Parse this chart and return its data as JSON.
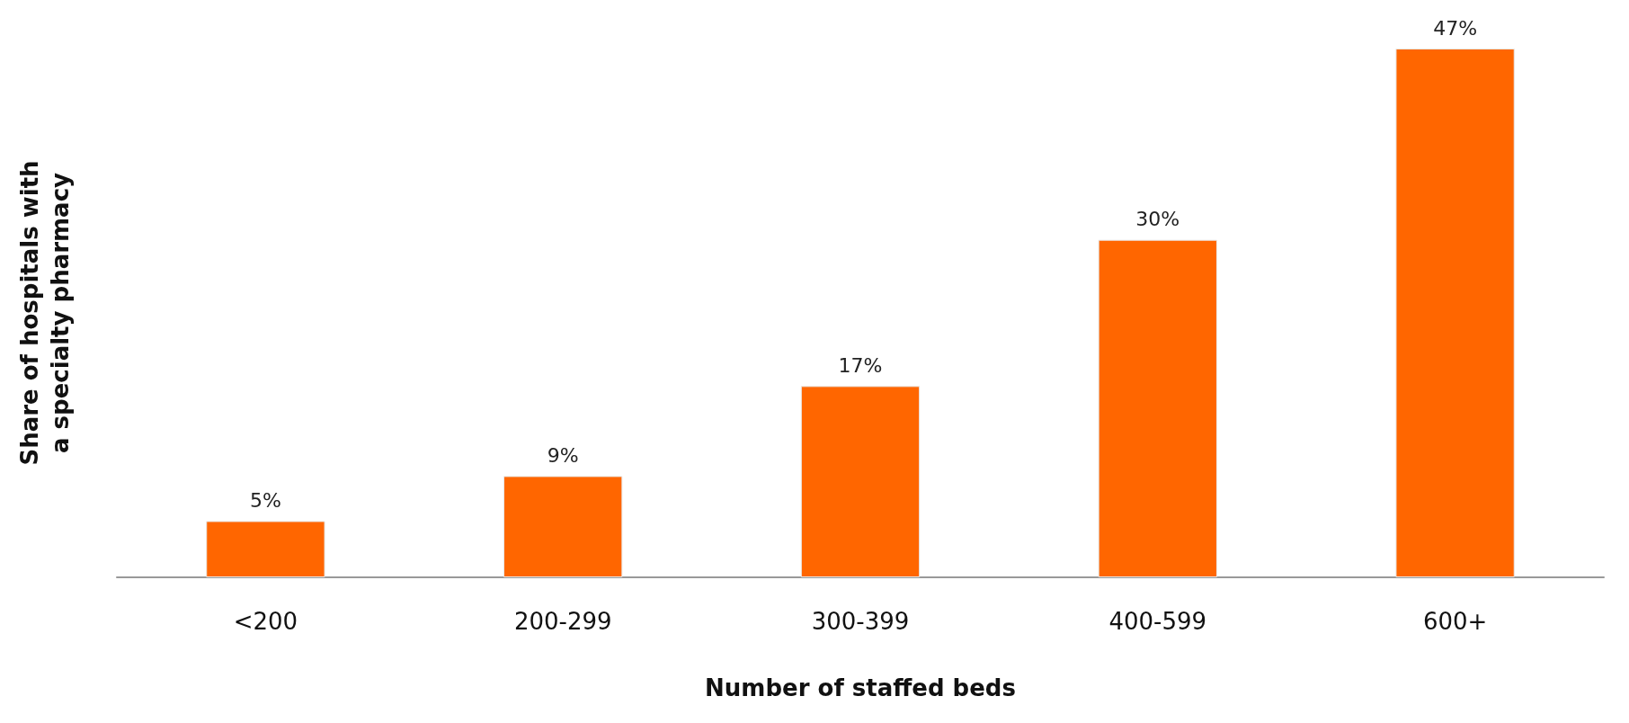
{
  "chart_data": {
    "type": "bar",
    "xlabel": "Number of staffed beds",
    "ylabel": "Share of hospitals with\na specialty pharmacy",
    "categories": [
      "<200",
      "200-299",
      "300-399",
      "400-599",
      "600+"
    ],
    "values": [
      5,
      9,
      17,
      30,
      47
    ],
    "color": "#ff6600",
    "data_labels": true,
    "value_labels": [
      "5%",
      "9%",
      "17%",
      "30%",
      "47%"
    ],
    "grid": false
  }
}
